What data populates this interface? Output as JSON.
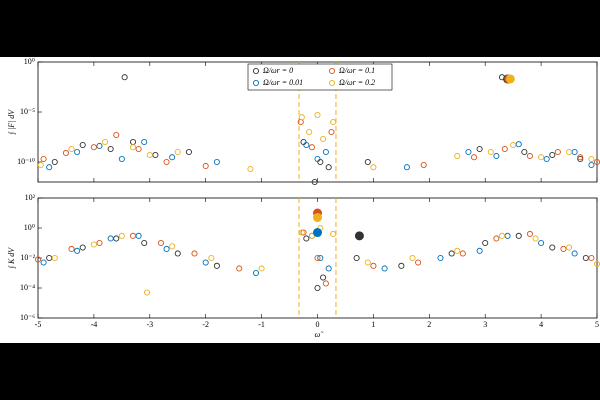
{
  "chart_data": [
    {
      "type": "scatter",
      "ylabel": "∫ |F| dV",
      "ylog": true,
      "xlim": [
        -5,
        5
      ],
      "xticks": [
        -5,
        -4,
        -3,
        -2,
        -1,
        0,
        1,
        2,
        3,
        4,
        5
      ],
      "xticklabels": false,
      "ylim": [
        1e-12,
        1
      ],
      "yticks": [
        {
          "value": 1,
          "label": "10⁰"
        },
        {
          "value": 1e-05,
          "label": "10⁻⁵"
        },
        {
          "value": 1e-10,
          "label": "10⁻¹⁰"
        }
      ],
      "legend": "top-center",
      "vlines": [
        -0.33,
        0.33
      ],
      "vline_color": "#edb120",
      "series": [
        {
          "name": "Ω/ωr = 0",
          "color": "#333333",
          "x": [
            -4.7,
            -4.2,
            -3.7,
            -3.45,
            -3.3,
            -2.9,
            -2.3,
            -0.25,
            0.05,
            0.2,
            -0.05,
            0.9,
            2.9,
            3.3,
            3.7,
            4.2,
            4.7
          ],
          "y": [
            1e-10,
            5e-09,
            2e-09,
            0.03,
            1e-08,
            5e-10,
            1e-09,
            1e-08,
            1e-10,
            3e-11,
            1e-12,
            1e-10,
            2e-09,
            0.03,
            1e-09,
            5e-10,
            2e-10
          ]
        },
        {
          "name": "Ω/ωr = 0.01",
          "color": "#0072bd",
          "x": [
            -4.8,
            -4.3,
            -3.9,
            -3.5,
            -3.1,
            -2.6,
            -1.8,
            -0.2,
            0.0,
            0.15,
            1.6,
            2.7,
            3.2,
            3.6,
            4.1,
            4.6,
            4.9
          ],
          "y": [
            3e-11,
            1e-09,
            4e-09,
            2e-10,
            1e-08,
            3e-10,
            1e-10,
            5e-09,
            2e-10,
            1e-09,
            3e-11,
            1e-09,
            4e-10,
            6e-09,
            2e-10,
            1e-09,
            5e-11
          ]
        },
        {
          "name": "Ω/ωr = 0.1",
          "color": "#d95319",
          "x": [
            -4.9,
            -4.5,
            -4.0,
            -3.6,
            -3.2,
            -2.7,
            -2.0,
            -0.3,
            -0.1,
            0.25,
            1.9,
            2.8,
            3.35,
            3.8,
            4.3,
            4.7,
            5.0
          ],
          "y": [
            2e-10,
            8e-10,
            3e-09,
            5e-08,
            2e-09,
            1e-10,
            4e-11,
            1e-06,
            3e-09,
            1e-07,
            5e-11,
            3e-10,
            2e-09,
            4e-10,
            1e-09,
            3e-10,
            1e-10
          ]
        },
        {
          "name": "Ω/ωr = 0.2",
          "color": "#edb120",
          "x": [
            -4.95,
            -4.4,
            -3.8,
            -3.3,
            -3.0,
            -2.5,
            -1.2,
            -0.28,
            -0.15,
            0.0,
            0.1,
            0.28,
            1.0,
            2.5,
            3.1,
            3.5,
            4.0,
            4.5,
            4.9
          ],
          "y": [
            5e-11,
            2e-09,
            1e-08,
            3e-09,
            5e-10,
            1e-09,
            2e-11,
            3e-06,
            1e-07,
            5e-06,
            2e-08,
            1e-06,
            3e-11,
            4e-10,
            1e-09,
            5e-09,
            3e-10,
            1e-09,
            2e-10
          ]
        }
      ],
      "highlights": [
        {
          "x": 3.4,
          "y": 0.02,
          "color": "#333333"
        },
        {
          "x": 3.42,
          "y": 0.02,
          "color": "#d95319"
        },
        {
          "x": 3.45,
          "y": 0.02,
          "color": "#edb120"
        }
      ]
    },
    {
      "type": "scatter",
      "ylabel": "∫ K dV",
      "xlabel": "ω̃",
      "ylog": true,
      "xlim": [
        -5,
        5
      ],
      "xticks": [
        -5,
        -4,
        -3,
        -2,
        -1,
        0,
        1,
        2,
        3,
        4,
        5
      ],
      "xticklabels": true,
      "ylim": [
        1e-06,
        100
      ],
      "yticks": [
        {
          "value": 100,
          "label": "10²"
        },
        {
          "value": 1,
          "label": "10⁰"
        },
        {
          "value": 0.01,
          "label": "10⁻²"
        },
        {
          "value": 0.0001,
          "label": "10⁻⁴"
        },
        {
          "value": 1e-06,
          "label": "10⁻⁶"
        }
      ],
      "vlines": [
        -0.33,
        0.33
      ],
      "vline_color": "#edb120",
      "series": [
        {
          "color": "#333333",
          "x": [
            -4.8,
            -4.2,
            -3.6,
            -3.1,
            -2.5,
            -1.8,
            -0.2,
            0.0,
            0.1,
            0.7,
            1.5,
            2.4,
            3.0,
            3.6,
            4.2,
            4.8
          ],
          "y": [
            0.01,
            0.05,
            0.2,
            0.1,
            0.02,
            0.003,
            0.2,
            0.0001,
            0.0005,
            0.01,
            0.003,
            0.02,
            0.1,
            0.3,
            0.05,
            0.01
          ]
        },
        {
          "color": "#0072bd",
          "x": [
            -4.9,
            -4.3,
            -3.7,
            -3.2,
            -2.7,
            -2.0,
            -1.1,
            -0.1,
            0.05,
            0.2,
            1.2,
            2.2,
            2.9,
            3.4,
            4.0,
            4.6
          ],
          "y": [
            0.005,
            0.03,
            0.2,
            0.3,
            0.04,
            0.005,
            0.001,
            0.3,
            0.01,
            0.002,
            0.002,
            0.01,
            0.03,
            0.3,
            0.1,
            0.02
          ]
        },
        {
          "color": "#d95319",
          "x": [
            -5.0,
            -4.4,
            -3.9,
            -3.3,
            -2.8,
            -2.2,
            -1.4,
            -0.25,
            0.0,
            0.15,
            1.0,
            1.8,
            2.6,
            3.2,
            3.8,
            4.4,
            4.9
          ],
          "y": [
            0.008,
            0.04,
            0.1,
            0.3,
            0.1,
            0.02,
            0.002,
            0.5,
            0.01,
            0.0002,
            0.003,
            0.005,
            0.02,
            0.2,
            0.4,
            0.04,
            0.01
          ]
        },
        {
          "color": "#edb120",
          "x": [
            -4.7,
            -4.0,
            -3.5,
            -3.05,
            -2.6,
            -1.9,
            -1.0,
            -0.28,
            -0.1,
            0.05,
            0.28,
            0.9,
            1.7,
            2.5,
            3.3,
            3.9,
            4.5,
            5.0
          ],
          "y": [
            0.01,
            0.08,
            0.3,
            5e-05,
            0.06,
            0.01,
            0.002,
            0.5,
            0.3,
            1,
            0.4,
            0.005,
            0.01,
            0.03,
            0.3,
            0.2,
            0.05,
            0.004
          ]
        }
      ],
      "highlights": [
        {
          "x": 0,
          "y": 10,
          "color": "#d95319"
        },
        {
          "x": 0,
          "y": 5,
          "color": "#edb120"
        },
        {
          "x": 0,
          "y": 0.5,
          "color": "#0072bd"
        },
        {
          "x": 0.75,
          "y": 0.3,
          "color": "#333333"
        }
      ]
    }
  ]
}
